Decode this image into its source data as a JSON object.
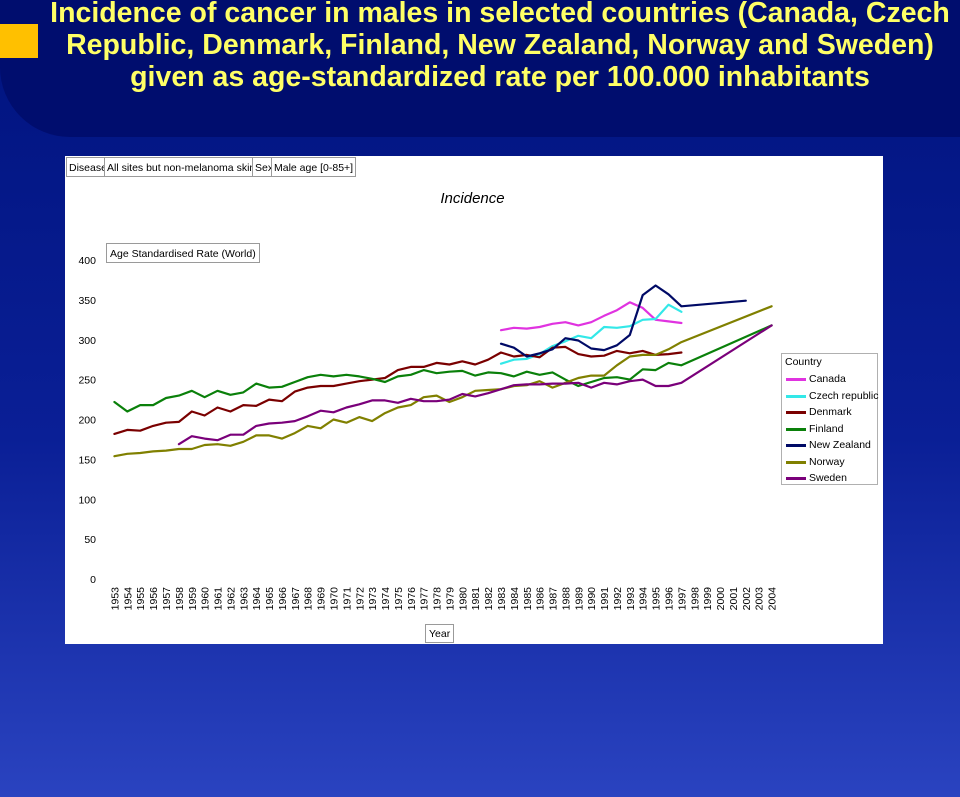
{
  "slide": {
    "title": "Incidence of cancer in males in selected countries (Canada, Czech Republic, Denmark, Finland, New Zealand, Norway and Sweden) given as age-standardized rate per 100.000 inhabitants"
  },
  "header_boxes": [
    {
      "text": "Disease"
    },
    {
      "text": "All sites but non-melanoma skin"
    },
    {
      "text": "Sex"
    },
    {
      "text": "Male age [0-85+]"
    }
  ],
  "colors": {
    "background": "#00137e",
    "title_text": "#ffff66",
    "accent_square": "#ffc000"
  },
  "chart_data": {
    "type": "line",
    "title": "Incidence",
    "ylabel": "Age Standardised Rate (World)",
    "xlabel": "Year",
    "ylim": [
      0,
      400
    ],
    "yticks": [
      0,
      50,
      100,
      150,
      200,
      250,
      300,
      350,
      400
    ],
    "grid": false,
    "legend_title": "Country",
    "legend_position": "right",
    "x": [
      1953,
      1954,
      1955,
      1956,
      1957,
      1958,
      1959,
      1960,
      1961,
      1962,
      1963,
      1964,
      1965,
      1966,
      1967,
      1968,
      1969,
      1970,
      1971,
      1972,
      1973,
      1974,
      1975,
      1976,
      1977,
      1978,
      1979,
      1980,
      1981,
      1982,
      1983,
      1984,
      1985,
      1986,
      1987,
      1988,
      1989,
      1990,
      1991,
      1992,
      1993,
      1994,
      1995,
      1996,
      1997,
      1998,
      1999,
      2000,
      2001,
      2002,
      2003,
      2004
    ],
    "series": [
      {
        "name": "Canada",
        "color": "#e033e0",
        "points": [
          [
            1983,
            312
          ],
          [
            1984,
            315
          ],
          [
            1985,
            314
          ],
          [
            1986,
            316
          ],
          [
            1987,
            320
          ],
          [
            1988,
            322
          ],
          [
            1989,
            318
          ],
          [
            1990,
            322
          ],
          [
            1991,
            330
          ],
          [
            1992,
            337
          ],
          [
            1993,
            347
          ],
          [
            1994,
            340
          ],
          [
            1995,
            325
          ],
          [
            1996,
            323
          ],
          [
            1997,
            321
          ]
        ]
      },
      {
        "name": "Czech republic",
        "color": "#33e8e8",
        "points": [
          [
            1983,
            270
          ],
          [
            1984,
            275
          ],
          [
            1985,
            276
          ],
          [
            1986,
            282
          ],
          [
            1987,
            292
          ],
          [
            1988,
            298
          ],
          [
            1989,
            305
          ],
          [
            1990,
            302
          ],
          [
            1991,
            316
          ],
          [
            1992,
            315
          ],
          [
            1993,
            317
          ],
          [
            1994,
            325
          ],
          [
            1995,
            326
          ],
          [
            1996,
            344
          ],
          [
            1997,
            335
          ]
        ]
      },
      {
        "name": "Denmark",
        "color": "#7a0000",
        "points": [
          [
            1953,
            182
          ],
          [
            1954,
            187
          ],
          [
            1955,
            186
          ],
          [
            1956,
            192
          ],
          [
            1957,
            196
          ],
          [
            1958,
            197
          ],
          [
            1959,
            210
          ],
          [
            1960,
            205
          ],
          [
            1961,
            215
          ],
          [
            1962,
            210
          ],
          [
            1963,
            218
          ],
          [
            1964,
            217
          ],
          [
            1965,
            225
          ],
          [
            1966,
            223
          ],
          [
            1967,
            235
          ],
          [
            1968,
            240
          ],
          [
            1969,
            242
          ],
          [
            1970,
            242
          ],
          [
            1971,
            245
          ],
          [
            1972,
            248
          ],
          [
            1973,
            250
          ],
          [
            1974,
            252
          ],
          [
            1975,
            262
          ],
          [
            1976,
            266
          ],
          [
            1977,
            266
          ],
          [
            1978,
            271
          ],
          [
            1979,
            269
          ],
          [
            1980,
            273
          ],
          [
            1981,
            269
          ],
          [
            1982,
            275
          ],
          [
            1983,
            284
          ],
          [
            1984,
            279
          ],
          [
            1985,
            281
          ],
          [
            1986,
            278
          ],
          [
            1987,
            290
          ],
          [
            1988,
            291
          ],
          [
            1989,
            282
          ],
          [
            1990,
            279
          ],
          [
            1991,
            280
          ],
          [
            1992,
            286
          ],
          [
            1993,
            283
          ],
          [
            1994,
            286
          ],
          [
            1995,
            281
          ],
          [
            1996,
            282
          ],
          [
            1997,
            284
          ]
        ]
      },
      {
        "name": "Finland",
        "color": "#0a800a",
        "points": [
          [
            1953,
            222
          ],
          [
            1954,
            210
          ],
          [
            1955,
            218
          ],
          [
            1956,
            218
          ],
          [
            1957,
            227
          ],
          [
            1958,
            230
          ],
          [
            1959,
            236
          ],
          [
            1960,
            228
          ],
          [
            1961,
            236
          ],
          [
            1962,
            231
          ],
          [
            1963,
            234
          ],
          [
            1964,
            245
          ],
          [
            1965,
            240
          ],
          [
            1966,
            241
          ],
          [
            1967,
            247
          ],
          [
            1968,
            253
          ],
          [
            1969,
            256
          ],
          [
            1970,
            254
          ],
          [
            1971,
            256
          ],
          [
            1972,
            254
          ],
          [
            1973,
            251
          ],
          [
            1974,
            247
          ],
          [
            1975,
            254
          ],
          [
            1976,
            256
          ],
          [
            1977,
            262
          ],
          [
            1978,
            258
          ],
          [
            1979,
            260
          ],
          [
            1980,
            261
          ],
          [
            1981,
            255
          ],
          [
            1982,
            259
          ],
          [
            1983,
            258
          ],
          [
            1984,
            254
          ],
          [
            1985,
            260
          ],
          [
            1986,
            256
          ],
          [
            1987,
            259
          ],
          [
            1988,
            250
          ],
          [
            1989,
            242
          ],
          [
            1990,
            247
          ],
          [
            1991,
            252
          ],
          [
            1992,
            253
          ],
          [
            1993,
            250
          ],
          [
            1994,
            263
          ],
          [
            1995,
            262
          ],
          [
            1996,
            271
          ],
          [
            1997,
            268
          ],
          [
            2004,
            318
          ]
        ]
      },
      {
        "name": "New Zealand",
        "color": "#000a66",
        "points": [
          [
            1983,
            295
          ],
          [
            1984,
            290
          ],
          [
            1985,
            279
          ],
          [
            1986,
            283
          ],
          [
            1987,
            288
          ],
          [
            1988,
            302
          ],
          [
            1989,
            299
          ],
          [
            1990,
            289
          ],
          [
            1991,
            287
          ],
          [
            1992,
            293
          ],
          [
            1993,
            306
          ],
          [
            1994,
            356
          ],
          [
            1995,
            368
          ],
          [
            1996,
            357
          ],
          [
            1997,
            342
          ],
          [
            2002,
            349
          ]
        ]
      },
      {
        "name": "Norway",
        "color": "#808000",
        "points": [
          [
            1953,
            154
          ],
          [
            1954,
            157
          ],
          [
            1955,
            158
          ],
          [
            1956,
            160
          ],
          [
            1957,
            161
          ],
          [
            1958,
            163
          ],
          [
            1959,
            163
          ],
          [
            1960,
            168
          ],
          [
            1961,
            169
          ],
          [
            1962,
            167
          ],
          [
            1963,
            172
          ],
          [
            1964,
            180
          ],
          [
            1965,
            180
          ],
          [
            1966,
            176
          ],
          [
            1967,
            183
          ],
          [
            1968,
            192
          ],
          [
            1969,
            189
          ],
          [
            1970,
            200
          ],
          [
            1971,
            196
          ],
          [
            1972,
            203
          ],
          [
            1973,
            198
          ],
          [
            1974,
            208
          ],
          [
            1975,
            215
          ],
          [
            1976,
            218
          ],
          [
            1977,
            228
          ],
          [
            1978,
            230
          ],
          [
            1979,
            222
          ],
          [
            1980,
            228
          ],
          [
            1981,
            236
          ],
          [
            1982,
            237
          ],
          [
            1983,
            238
          ],
          [
            1984,
            242
          ],
          [
            1985,
            243
          ],
          [
            1986,
            248
          ],
          [
            1987,
            240
          ],
          [
            1988,
            246
          ],
          [
            1989,
            252
          ],
          [
            1990,
            255
          ],
          [
            1991,
            255
          ],
          [
            1992,
            268
          ],
          [
            1993,
            279
          ],
          [
            1994,
            281
          ],
          [
            1995,
            281
          ],
          [
            1996,
            288
          ],
          [
            1997,
            297
          ],
          [
            2004,
            342
          ]
        ]
      },
      {
        "name": "Sweden",
        "color": "#7a007a",
        "points": [
          [
            1958,
            169
          ],
          [
            1959,
            179
          ],
          [
            1960,
            176
          ],
          [
            1961,
            174
          ],
          [
            1962,
            181
          ],
          [
            1963,
            181
          ],
          [
            1964,
            192
          ],
          [
            1965,
            195
          ],
          [
            1966,
            196
          ],
          [
            1967,
            198
          ],
          [
            1968,
            204
          ],
          [
            1969,
            211
          ],
          [
            1970,
            209
          ],
          [
            1971,
            215
          ],
          [
            1972,
            219
          ],
          [
            1973,
            224
          ],
          [
            1974,
            224
          ],
          [
            1975,
            221
          ],
          [
            1976,
            226
          ],
          [
            1977,
            223
          ],
          [
            1978,
            223
          ],
          [
            1979,
            225
          ],
          [
            1980,
            232
          ],
          [
            1981,
            229
          ],
          [
            1982,
            233
          ],
          [
            1983,
            238
          ],
          [
            1984,
            243
          ],
          [
            1985,
            244
          ],
          [
            1986,
            244
          ],
          [
            1987,
            245
          ],
          [
            1988,
            245
          ],
          [
            1989,
            246
          ],
          [
            1990,
            240
          ],
          [
            1991,
            246
          ],
          [
            1992,
            244
          ],
          [
            1993,
            248
          ],
          [
            1994,
            250
          ],
          [
            1995,
            242
          ],
          [
            1996,
            242
          ],
          [
            1997,
            246
          ],
          [
            2004,
            318
          ]
        ]
      }
    ]
  }
}
